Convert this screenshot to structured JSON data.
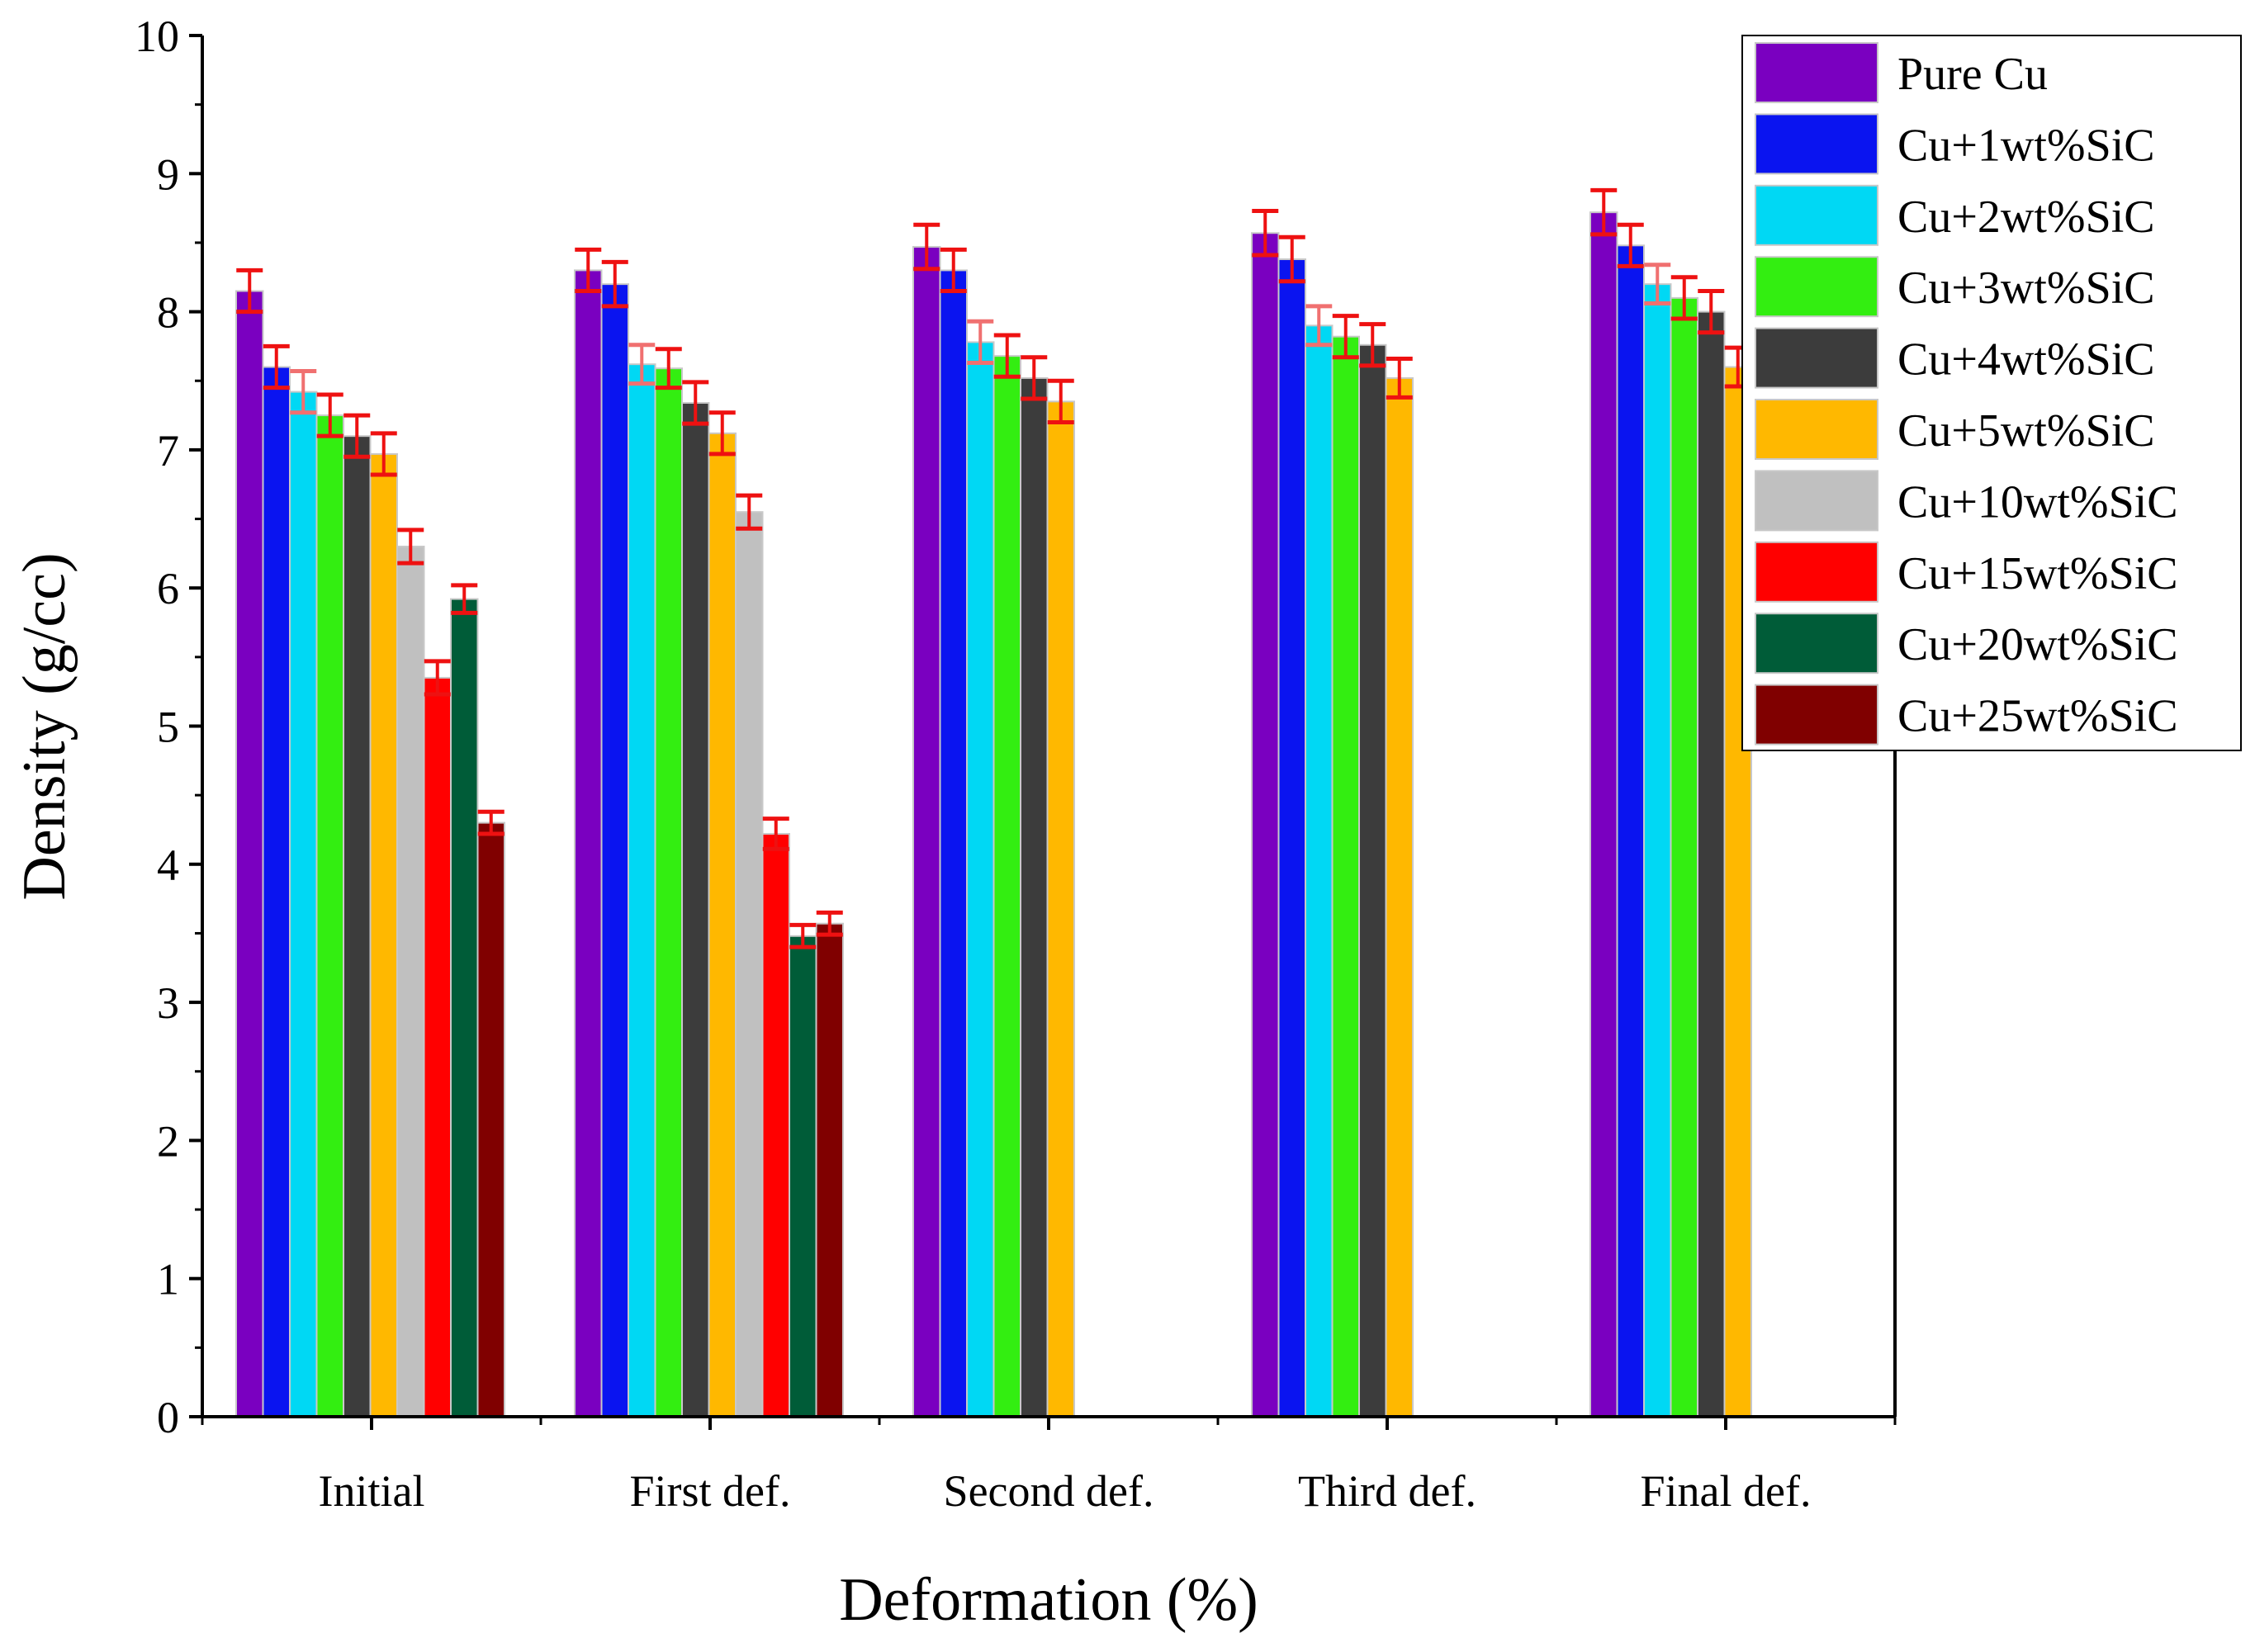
{
  "chart_data": {
    "type": "bar",
    "title": "",
    "xlabel": "Deformation (%)",
    "ylabel": "Density (g/cc)",
    "ylim": [
      0,
      10
    ],
    "yticks": [
      "0",
      "1",
      "2",
      "3",
      "4",
      "5",
      "6",
      "7",
      "8",
      "9",
      "10"
    ],
    "categories": [
      "Initial",
      "First def.",
      "Second def.",
      "Third def.",
      "Final def."
    ],
    "legend_position": "top-right",
    "error_color": "#ee1111",
    "series": [
      {
        "name": "Pure Cu",
        "color": "#7a00c0",
        "values": [
          8.15,
          8.3,
          8.47,
          8.57,
          8.72
        ],
        "errors": [
          0.15,
          0.15,
          0.16,
          0.16,
          0.16
        ]
      },
      {
        "name": "Cu+1wt%SiC",
        "color": "#0a14f0",
        "values": [
          7.6,
          8.2,
          8.3,
          8.38,
          8.48
        ],
        "errors": [
          0.15,
          0.16,
          0.15,
          0.16,
          0.15
        ]
      },
      {
        "name": "Cu+2wt%SiC",
        "color": "#00d8f4",
        "values": [
          7.42,
          7.62,
          7.78,
          7.9,
          8.2
        ],
        "errors": [
          0.15,
          0.14,
          0.15,
          0.14,
          0.14
        ]
      },
      {
        "name": "Cu+3wt%SiC",
        "color": "#33ee11",
        "values": [
          7.25,
          7.59,
          7.68,
          7.82,
          8.1
        ],
        "errors": [
          0.15,
          0.14,
          0.15,
          0.15,
          0.15
        ]
      },
      {
        "name": "Cu+4wt%SiC",
        "color": "#3c3c3c",
        "values": [
          7.1,
          7.34,
          7.52,
          7.76,
          8.0
        ],
        "errors": [
          0.15,
          0.15,
          0.15,
          0.15,
          0.15
        ]
      },
      {
        "name": "Cu+5wt%SiC",
        "color": "#ffb800",
        "values": [
          6.97,
          7.12,
          7.35,
          7.52,
          7.6
        ],
        "errors": [
          0.15,
          0.15,
          0.15,
          0.14,
          0.14
        ]
      },
      {
        "name": "Cu+10wt%SiC",
        "color": "#c0c0c0",
        "values": [
          6.3,
          6.55,
          null,
          null,
          null
        ],
        "errors": [
          0.12,
          0.12,
          null,
          null,
          null
        ]
      },
      {
        "name": "Cu+15wt%SiC",
        "color": "#ff0000",
        "values": [
          5.35,
          4.22,
          null,
          null,
          null
        ],
        "errors": [
          0.12,
          0.11,
          null,
          null,
          null
        ]
      },
      {
        "name": "Cu+20wt%SiC",
        "color": "#005c38",
        "values": [
          5.92,
          3.48,
          null,
          null,
          null
        ],
        "errors": [
          0.1,
          0.08,
          null,
          null,
          null
        ]
      },
      {
        "name": "Cu+25wt%SiC",
        "color": "#800000",
        "values": [
          4.3,
          3.57,
          null,
          null,
          null
        ],
        "errors": [
          0.08,
          0.08,
          null,
          null,
          null
        ]
      }
    ]
  }
}
